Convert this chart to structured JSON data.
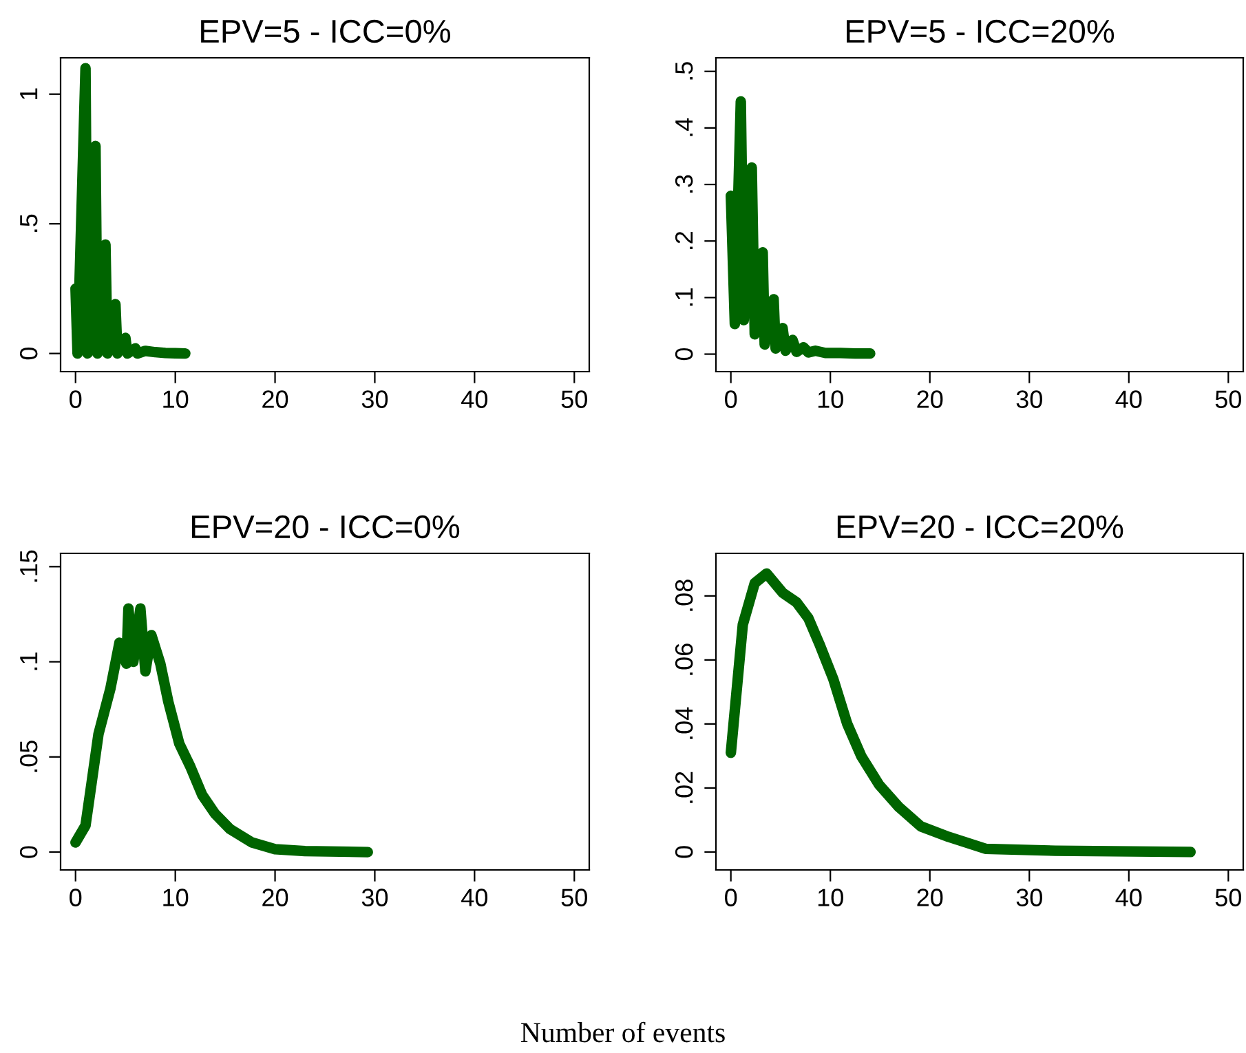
{
  "chart_data": [
    {
      "type": "line",
      "title": "EPV=5 - ICC=0%",
      "xlim": [
        -1.5,
        51.5
      ],
      "xticks": [
        0,
        10,
        20,
        30,
        40,
        50
      ],
      "ylim": [
        -0.07,
        1.14
      ],
      "yticks": [
        0,
        {
          "value": 0.5,
          "label": ".5"
        },
        1
      ],
      "grid": false,
      "legend": false,
      "marker": "none",
      "line_style": "solid",
      "series": [
        {
          "color": "#006400",
          "x": [
            0,
            0.2,
            1,
            1.2,
            2,
            2.2,
            3,
            3.2,
            4,
            4.2,
            5,
            5.2,
            6,
            6.2,
            7,
            8,
            9,
            10,
            11
          ],
          "values": [
            0.25,
            0,
            1.1,
            0,
            0.8,
            0,
            0.42,
            0,
            0.19,
            0,
            0.06,
            0,
            0.02,
            0,
            0.01,
            0.005,
            0.002,
            0.001,
            0
          ]
        }
      ]
    },
    {
      "type": "line",
      "title": "EPV=5 - ICC=20%",
      "xlim": [
        -1.5,
        51.5
      ],
      "xticks": [
        0,
        10,
        20,
        30,
        40,
        50
      ],
      "ylim": [
        -0.031,
        0.524
      ],
      "yticks": [
        0,
        {
          "value": 0.1,
          "label": ".1"
        },
        {
          "value": 0.2,
          "label": ".2"
        },
        {
          "value": 0.3,
          "label": ".3"
        },
        {
          "value": 0.4,
          "label": ".4"
        },
        {
          "value": 0.5,
          "label": ".5"
        }
      ],
      "grid": false,
      "legend": false,
      "marker": "none",
      "line_style": "solid",
      "series": [
        {
          "color": "#006400",
          "x": [
            0,
            0.4,
            1,
            1.3,
            2.1,
            2.4,
            3.2,
            3.4,
            4.3,
            4.5,
            5.2,
            5.5,
            6.2,
            6.6,
            7.3,
            7.8,
            8.5,
            9.5,
            11,
            12.5,
            14
          ],
          "values": [
            0.28,
            0.053,
            0.447,
            0.06,
            0.33,
            0.035,
            0.18,
            0.017,
            0.097,
            0.01,
            0.046,
            0.006,
            0.025,
            0.004,
            0.012,
            0.003,
            0.006,
            0.002,
            0.002,
            0.001,
            0.001
          ]
        }
      ]
    },
    {
      "type": "line",
      "title": "EPV=20 - ICC=0%",
      "xlim": [
        -1.5,
        51.5
      ],
      "xticks": [
        0,
        10,
        20,
        30,
        40,
        50
      ],
      "ylim": [
        -0.0094,
        0.157
      ],
      "yticks": [
        0,
        {
          "value": 0.05,
          "label": ".05"
        },
        {
          "value": 0.1,
          "label": ".1"
        },
        {
          "value": 0.15,
          "label": ".15"
        }
      ],
      "grid": false,
      "legend": false,
      "marker": "none",
      "line_style": "solid",
      "series": [
        {
          "color": "#006400",
          "x": [
            0,
            1,
            1.6,
            2.3,
            3.5,
            4.4,
            5.1,
            5.3,
            5.8,
            6.5,
            7,
            7.6,
            8.5,
            9.3,
            10.4,
            11.5,
            12.7,
            14,
            15.5,
            17.7,
            20,
            23,
            29.3
          ],
          "values": [
            0.005,
            0.014,
            0.036,
            0.062,
            0.086,
            0.11,
            0.099,
            0.128,
            0.1,
            0.128,
            0.095,
            0.114,
            0.099,
            0.079,
            0.057,
            0.045,
            0.03,
            0.02,
            0.012,
            0.005,
            0.0015,
            0.0005,
            0
          ]
        }
      ]
    },
    {
      "type": "line",
      "title": "EPV=20 - ICC=20%",
      "xlim": [
        -1.5,
        51.5
      ],
      "xticks": [
        0,
        10,
        20,
        30,
        40,
        50
      ],
      "ylim": [
        -0.0056,
        0.0933
      ],
      "yticks": [
        0,
        {
          "value": 0.02,
          "label": ".02"
        },
        {
          "value": 0.04,
          "label": ".04"
        },
        {
          "value": 0.06,
          "label": ".06"
        },
        {
          "value": 0.08,
          "label": ".08"
        }
      ],
      "grid": false,
      "legend": false,
      "marker": "none",
      "line_style": "solid",
      "annotations": [
        "Number of events"
      ],
      "series": [
        {
          "color": "#006400",
          "x": [
            0,
            0.6,
            1.2,
            2.4,
            3.6,
            5.2,
            6.6,
            7.8,
            8.9,
            10.3,
            11.7,
            13.1,
            14.9,
            16.9,
            19.1,
            21.9,
            25.6,
            32.6,
            46.2
          ],
          "values": [
            0.031,
            0.051,
            0.071,
            0.084,
            0.087,
            0.081,
            0.078,
            0.073,
            0.065,
            0.054,
            0.04,
            0.03,
            0.021,
            0.014,
            0.008,
            0.0047,
            0.001,
            0.0004,
            0
          ]
        }
      ]
    }
  ]
}
